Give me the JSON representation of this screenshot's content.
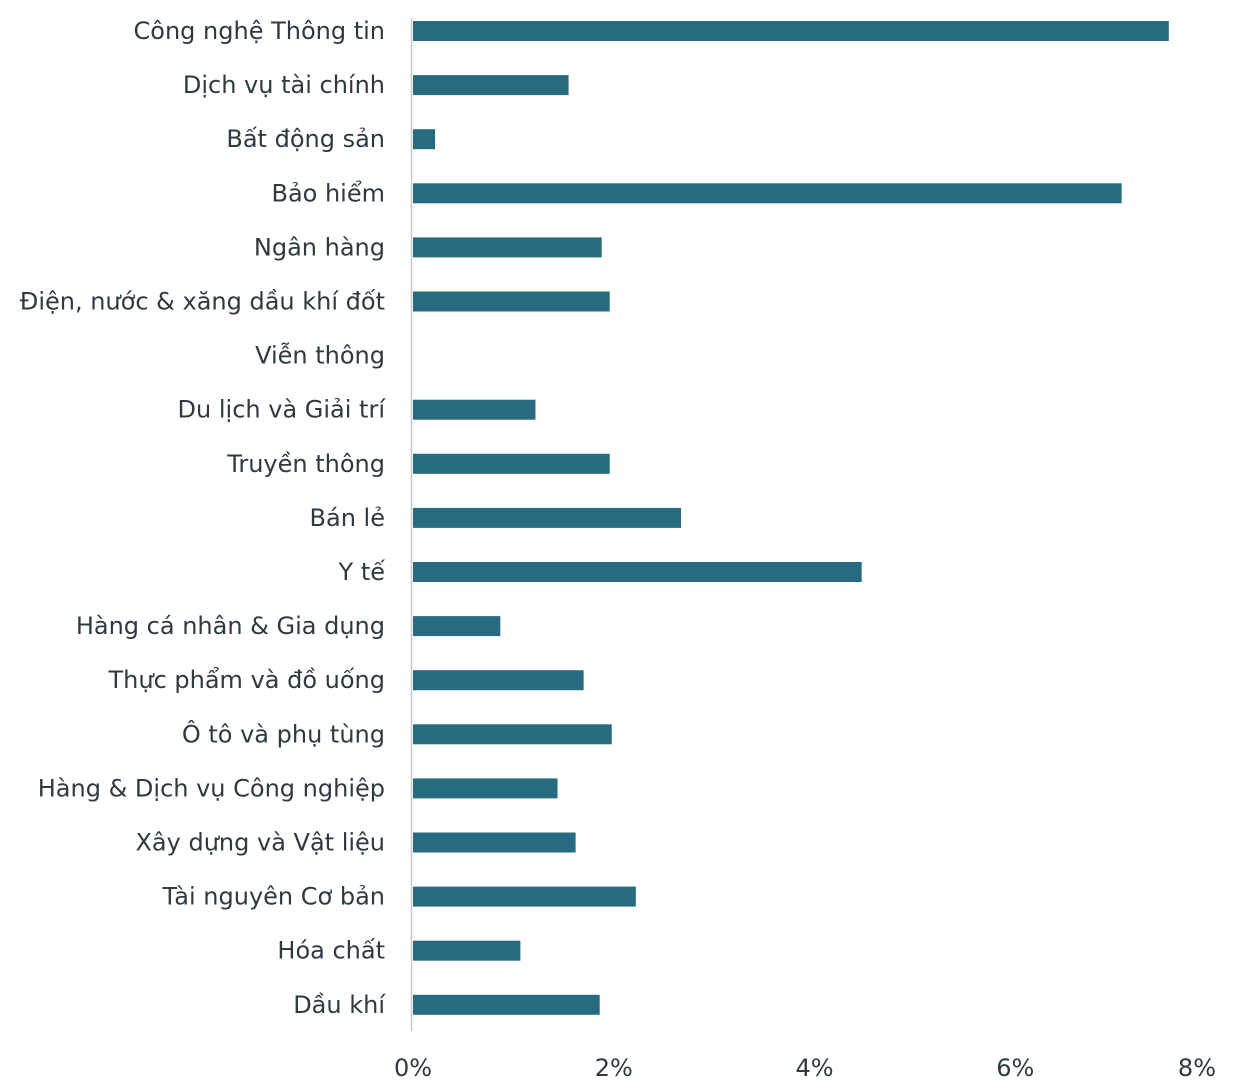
{
  "chart_data": {
    "type": "bar",
    "orientation": "horizontal",
    "categories": [
      "Công nghệ Thông tin",
      "Dịch vụ tài chính",
      "Bất động sản",
      "Bảo hiểm",
      "Ngân hàng",
      "Điện, nước & xăng dầu khí đốt",
      "Viễn thông",
      "Du lịch và Giải trí",
      "Truyền thông",
      "Bán lẻ",
      "Y tế",
      "Hàng cá nhân & Gia dụng",
      "Thực phẩm và đồ uống",
      "Ô tô và phụ tùng",
      "Hàng & Dịch vụ Công nghiệp",
      "Xây dựng và Vật liệu",
      "Tài nguyên Cơ bản",
      "Hóa chất",
      "Dầu khí"
    ],
    "values": [
      7.53,
      1.55,
      0.22,
      7.06,
      1.88,
      1.96,
      0.0,
      1.22,
      1.96,
      2.67,
      4.47,
      0.87,
      1.7,
      1.98,
      1.44,
      1.62,
      2.22,
      1.07,
      1.86
    ],
    "xlim": [
      0,
      8
    ],
    "x_ticks": [
      0,
      2,
      4,
      6,
      8
    ],
    "x_tick_labels": [
      "0%",
      "2%",
      "4%",
      "6%",
      "8%"
    ],
    "bar_color": "#286b80",
    "grid": false,
    "legend": "none"
  }
}
